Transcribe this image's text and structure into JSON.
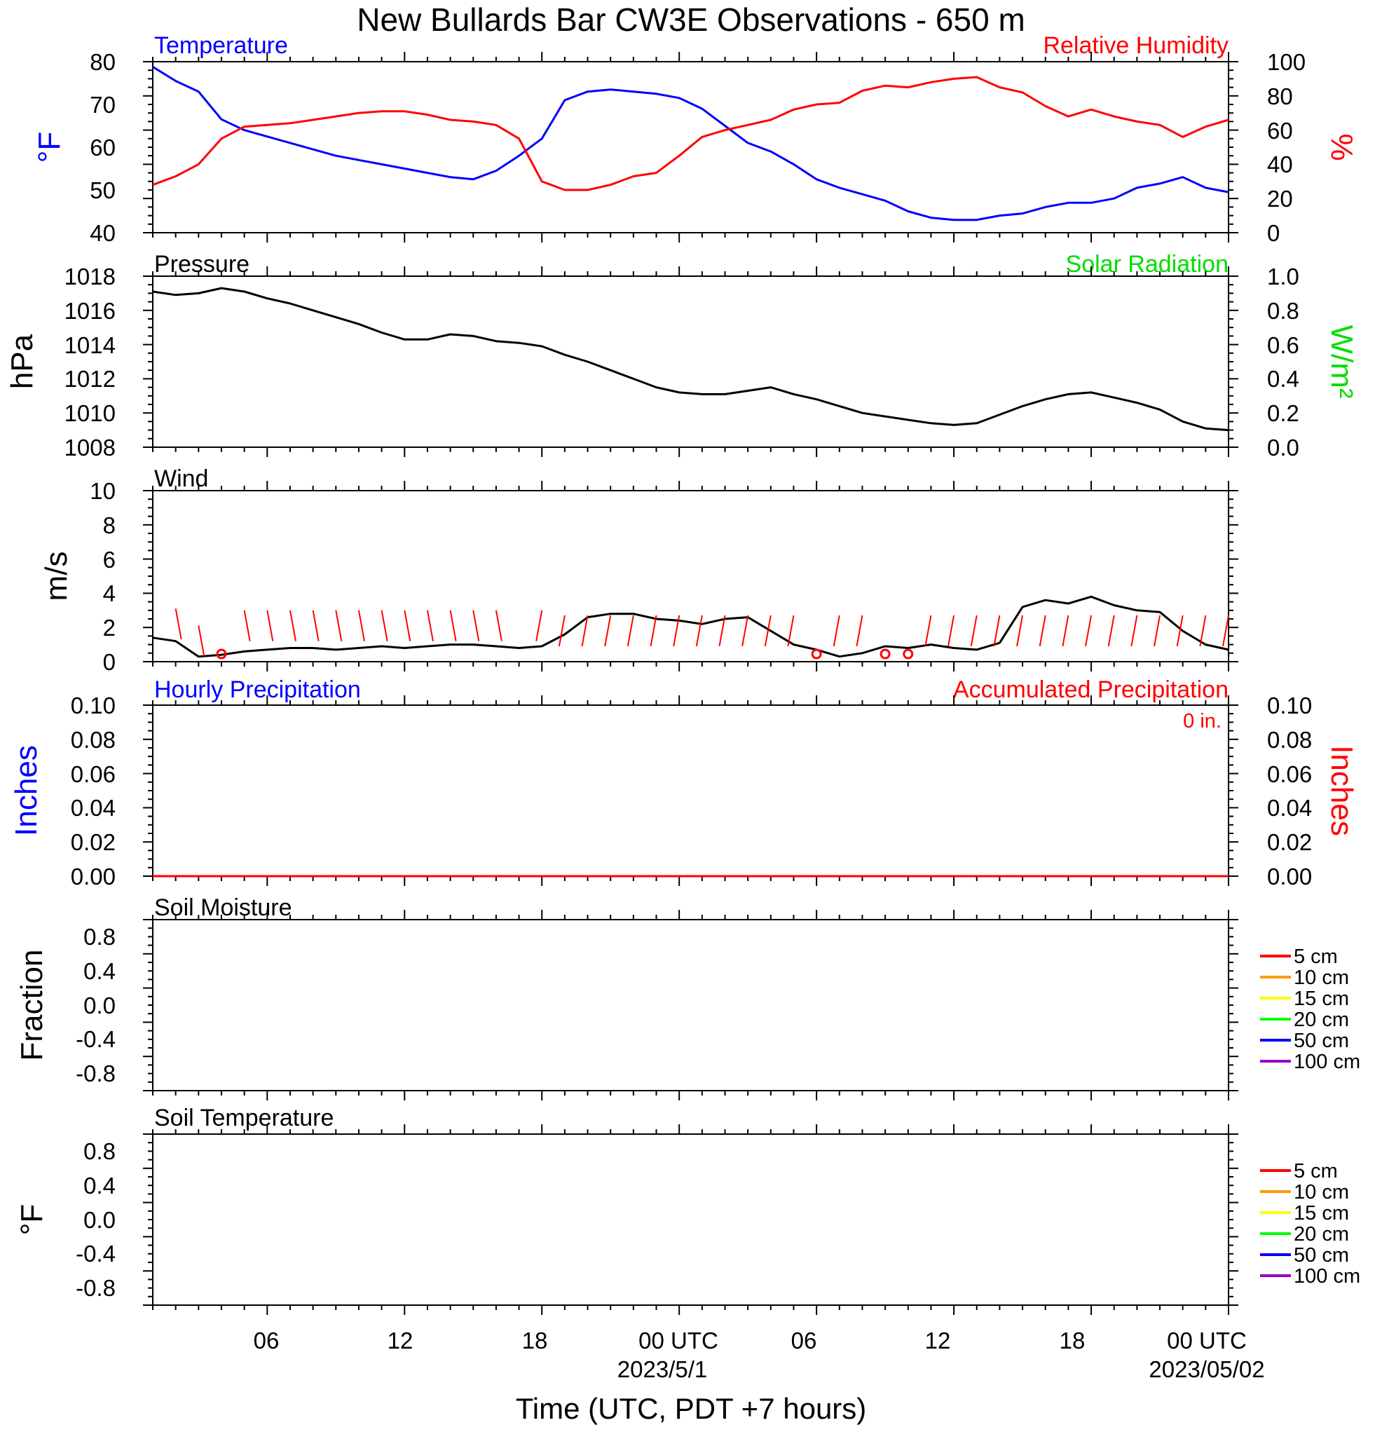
{
  "title": "New Bullards Bar CW3E Observations - 650 m",
  "xlabel": "Time (UTC, PDT +7 hours)",
  "colors": {
    "temperature": "#0000ff",
    "humidity": "#ff0000",
    "pressure": "#000000",
    "solar": "#00dd00",
    "wind_barbs": "#ff0000",
    "hourly_precip": "#0000ff",
    "accum_precip": "#ff0000"
  },
  "x_axis": {
    "unit": "hours since 2023-04-30 01 UTC",
    "range": [
      0,
      47
    ],
    "tick_labels": [
      {
        "x": 5,
        "label": "06"
      },
      {
        "x": 11,
        "label": "12"
      },
      {
        "x": 17,
        "label": "18"
      },
      {
        "x": 23,
        "label": "00 UTC",
        "sub": "2023/5/1"
      },
      {
        "x": 29,
        "label": "06"
      },
      {
        "x": 35,
        "label": "12"
      },
      {
        "x": 41,
        "label": "18"
      },
      {
        "x": 47,
        "label": "00 UTC",
        "sub": "2023/05/02"
      }
    ]
  },
  "panels": {
    "temp_rh": {
      "left_title": "Temperature",
      "right_title": "Relative Humidity",
      "left_unit": "°F",
      "right_unit": "%",
      "left_ticks": [
        "80",
        "70",
        "60",
        "50",
        "40"
      ],
      "right_ticks": [
        "100",
        "80",
        "60",
        "40",
        "20",
        "0"
      ]
    },
    "pressure": {
      "left_title": "Pressure",
      "right_title": "Solar Radiation",
      "left_unit": "hPa",
      "right_unit": "W/m²",
      "left_ticks": [
        "1018",
        "1016",
        "1014",
        "1012",
        "1010",
        "1008"
      ],
      "right_ticks": [
        "1.0",
        "0.8",
        "0.6",
        "0.4",
        "0.2",
        "0.0"
      ]
    },
    "wind": {
      "left_title": "Wind",
      "left_unit": "m/s",
      "left_ticks": [
        "10",
        "8",
        "6",
        "4",
        "2",
        "0"
      ]
    },
    "precip": {
      "left_title": "Hourly Precipitation",
      "right_title": "Accumulated Precipitation",
      "accum_label": "0 in.",
      "left_unit": "Inches",
      "right_unit": "Inches",
      "left_ticks": [
        "0.10",
        "0.08",
        "0.06",
        "0.04",
        "0.02",
        "0.00"
      ],
      "right_ticks": [
        "0.10",
        "0.08",
        "0.06",
        "0.04",
        "0.02",
        "0.00"
      ]
    },
    "soil_moisture": {
      "left_title": "Soil Moisture",
      "left_unit": "Fraction",
      "left_ticks": [
        "0.8",
        "0.4",
        "0.0",
        "-0.4",
        "-0.8"
      ],
      "legend": [
        {
          "label": "5 cm",
          "color": "#ff0000"
        },
        {
          "label": "10 cm",
          "color": "#ff9900"
        },
        {
          "label": "15 cm",
          "color": "#ffff00"
        },
        {
          "label": "20 cm",
          "color": "#00ff00"
        },
        {
          "label": "50 cm",
          "color": "#0000ff"
        },
        {
          "label": "100 cm",
          "color": "#9900cc"
        }
      ]
    },
    "soil_temp": {
      "left_title": "Soil Temperature",
      "left_unit": "°F",
      "left_ticks": [
        "0.8",
        "0.4",
        "0.0",
        "-0.4",
        "-0.8"
      ],
      "legend": [
        {
          "label": "5 cm",
          "color": "#ff0000"
        },
        {
          "label": "10 cm",
          "color": "#ff9900"
        },
        {
          "label": "15 cm",
          "color": "#ffff00"
        },
        {
          "label": "20 cm",
          "color": "#00ff00"
        },
        {
          "label": "50 cm",
          "color": "#0000ff"
        },
        {
          "label": "100 cm",
          "color": "#9900cc"
        }
      ]
    }
  },
  "chart_data": [
    {
      "type": "line",
      "panel": "temp_rh",
      "ylim": [
        40,
        80
      ],
      "y2lim": [
        0,
        100
      ],
      "series": [
        {
          "name": "Temperature",
          "axis": "left",
          "x": [
            0,
            1,
            2,
            3,
            4,
            5,
            6,
            7,
            8,
            9,
            10,
            11,
            12,
            13,
            14,
            15,
            16,
            17,
            18,
            19,
            20,
            21,
            22,
            23,
            24,
            25,
            26,
            27,
            28,
            29,
            30,
            31,
            32,
            33,
            34,
            35,
            36,
            37,
            38,
            39,
            40,
            41,
            42,
            43,
            44,
            45,
            46,
            47
          ],
          "values": [
            78.8,
            75.5,
            73,
            66.5,
            64,
            62.5,
            61,
            59.5,
            58,
            57,
            56,
            55,
            54,
            53,
            52.5,
            54.5,
            58,
            62,
            71,
            73,
            73.5,
            73,
            72.5,
            71.5,
            69,
            65,
            61,
            59,
            56,
            52.5,
            50.5,
            49,
            47.5,
            45,
            43.5,
            43,
            43,
            44,
            44.5,
            46,
            47,
            47,
            48,
            50.5,
            51.5,
            53,
            50.5,
            49.5
          ]
        },
        {
          "name": "Relative Humidity",
          "axis": "right",
          "x": [
            0,
            1,
            2,
            3,
            4,
            5,
            6,
            7,
            8,
            9,
            10,
            11,
            12,
            13,
            14,
            15,
            16,
            17,
            18,
            19,
            20,
            21,
            22,
            23,
            24,
            25,
            26,
            27,
            28,
            29,
            30,
            31,
            32,
            33,
            34,
            35,
            36,
            37,
            38,
            39,
            40,
            41,
            42,
            43,
            44,
            45,
            46,
            47
          ],
          "values": [
            28,
            33,
            40,
            55,
            62,
            63,
            64,
            66,
            68,
            70,
            71,
            71,
            69,
            66,
            65,
            63,
            55,
            30,
            25,
            25,
            28,
            33,
            35,
            45,
            56,
            60,
            63,
            66,
            72,
            75,
            76,
            83,
            86,
            85,
            88,
            90,
            91,
            85,
            82,
            74,
            68,
            72,
            68,
            65,
            63,
            56,
            62,
            66
          ]
        }
      ]
    },
    {
      "type": "line",
      "panel": "pressure",
      "ylim": [
        1008,
        1018
      ],
      "y2lim": [
        0,
        1
      ],
      "series": [
        {
          "name": "Pressure",
          "axis": "left",
          "x": [
            0,
            1,
            2,
            3,
            4,
            5,
            6,
            7,
            8,
            9,
            10,
            11,
            12,
            13,
            14,
            15,
            16,
            17,
            18,
            19,
            20,
            21,
            22,
            23,
            24,
            25,
            26,
            27,
            28,
            29,
            30,
            31,
            32,
            33,
            34,
            35,
            36,
            37,
            38,
            39,
            40,
            41,
            42,
            43,
            44,
            45,
            46,
            47
          ],
          "values": [
            1017.1,
            1016.9,
            1017.0,
            1017.3,
            1017.1,
            1016.7,
            1016.4,
            1016.0,
            1015.6,
            1015.2,
            1014.7,
            1014.3,
            1014.3,
            1014.6,
            1014.5,
            1014.2,
            1014.1,
            1013.9,
            1013.4,
            1013.0,
            1012.5,
            1012.0,
            1011.5,
            1011.2,
            1011.1,
            1011.1,
            1011.3,
            1011.5,
            1011.1,
            1010.8,
            1010.4,
            1010.0,
            1009.8,
            1009.6,
            1009.4,
            1009.3,
            1009.4,
            1009.9,
            1010.4,
            1010.8,
            1011.1,
            1011.2,
            1010.9,
            1010.6,
            1010.2,
            1009.5,
            1009.1,
            1009.0
          ]
        }
      ]
    },
    {
      "type": "line",
      "panel": "wind",
      "ylim": [
        0,
        10
      ],
      "series": [
        {
          "name": "Wind speed",
          "axis": "left",
          "x": [
            0,
            1,
            2,
            3,
            4,
            5,
            6,
            7,
            8,
            9,
            10,
            11,
            12,
            13,
            14,
            15,
            16,
            17,
            18,
            19,
            20,
            21,
            22,
            23,
            24,
            25,
            26,
            27,
            28,
            29,
            30,
            31,
            32,
            33,
            34,
            35,
            36,
            37,
            38,
            39,
            40,
            41,
            42,
            43,
            44,
            45,
            46,
            47
          ],
          "values": [
            1.4,
            1.2,
            0.3,
            0.4,
            0.6,
            0.7,
            0.8,
            0.8,
            0.7,
            0.8,
            0.9,
            0.8,
            0.9,
            1.0,
            1.0,
            0.9,
            0.8,
            0.9,
            1.6,
            2.6,
            2.8,
            2.8,
            2.5,
            2.4,
            2.2,
            2.5,
            2.6,
            1.8,
            1.0,
            0.7,
            0.3,
            0.5,
            0.9,
            0.8,
            1.0,
            0.8,
            0.7,
            1.1,
            3.2,
            3.6,
            3.4,
            3.8,
            3.3,
            3.0,
            2.9,
            1.8,
            1.0,
            0.7
          ]
        },
        {
          "name": "Wind barbs",
          "axis": "left",
          "x": [
            1,
            2,
            3,
            4,
            5,
            6,
            7,
            8,
            9,
            10,
            11,
            12,
            13,
            14,
            15,
            17,
            18,
            19,
            20,
            21,
            22,
            23,
            24,
            25,
            26,
            27,
            28,
            29,
            30,
            31,
            32,
            33,
            34,
            35,
            36,
            37,
            38,
            39,
            40,
            41,
            42,
            43,
            44,
            45,
            46,
            47
          ],
          "values": [
            2.0,
            1.0,
            0.0,
            1.9,
            1.9,
            1.9,
            1.9,
            1.9,
            1.9,
            1.9,
            1.9,
            1.9,
            1.9,
            1.9,
            1.9,
            1.9,
            1.6,
            1.6,
            1.6,
            1.6,
            1.6,
            1.6,
            1.6,
            1.6,
            1.6,
            1.6,
            1.6,
            0.0,
            1.6,
            1.6,
            0.0,
            0.0,
            1.6,
            1.6,
            1.6,
            1.6,
            1.6,
            1.6,
            1.6,
            1.6,
            1.6,
            1.6,
            1.6,
            1.6,
            1.6,
            1.6
          ]
        }
      ]
    },
    {
      "type": "line",
      "panel": "precip",
      "ylim": [
        0,
        0.1
      ],
      "y2lim": [
        0,
        0.1
      ],
      "series": [
        {
          "name": "Hourly Precipitation",
          "axis": "left",
          "x": [
            0,
            47
          ],
          "values": [
            0,
            0
          ]
        },
        {
          "name": "Accumulated Precipitation",
          "axis": "right",
          "x": [
            0,
            47
          ],
          "values": [
            0,
            0
          ]
        }
      ]
    },
    {
      "type": "line",
      "panel": "soil_moisture",
      "ylim": [
        -1,
        1
      ],
      "series": []
    },
    {
      "type": "line",
      "panel": "soil_temp",
      "ylim": [
        -1,
        1
      ],
      "series": []
    }
  ]
}
